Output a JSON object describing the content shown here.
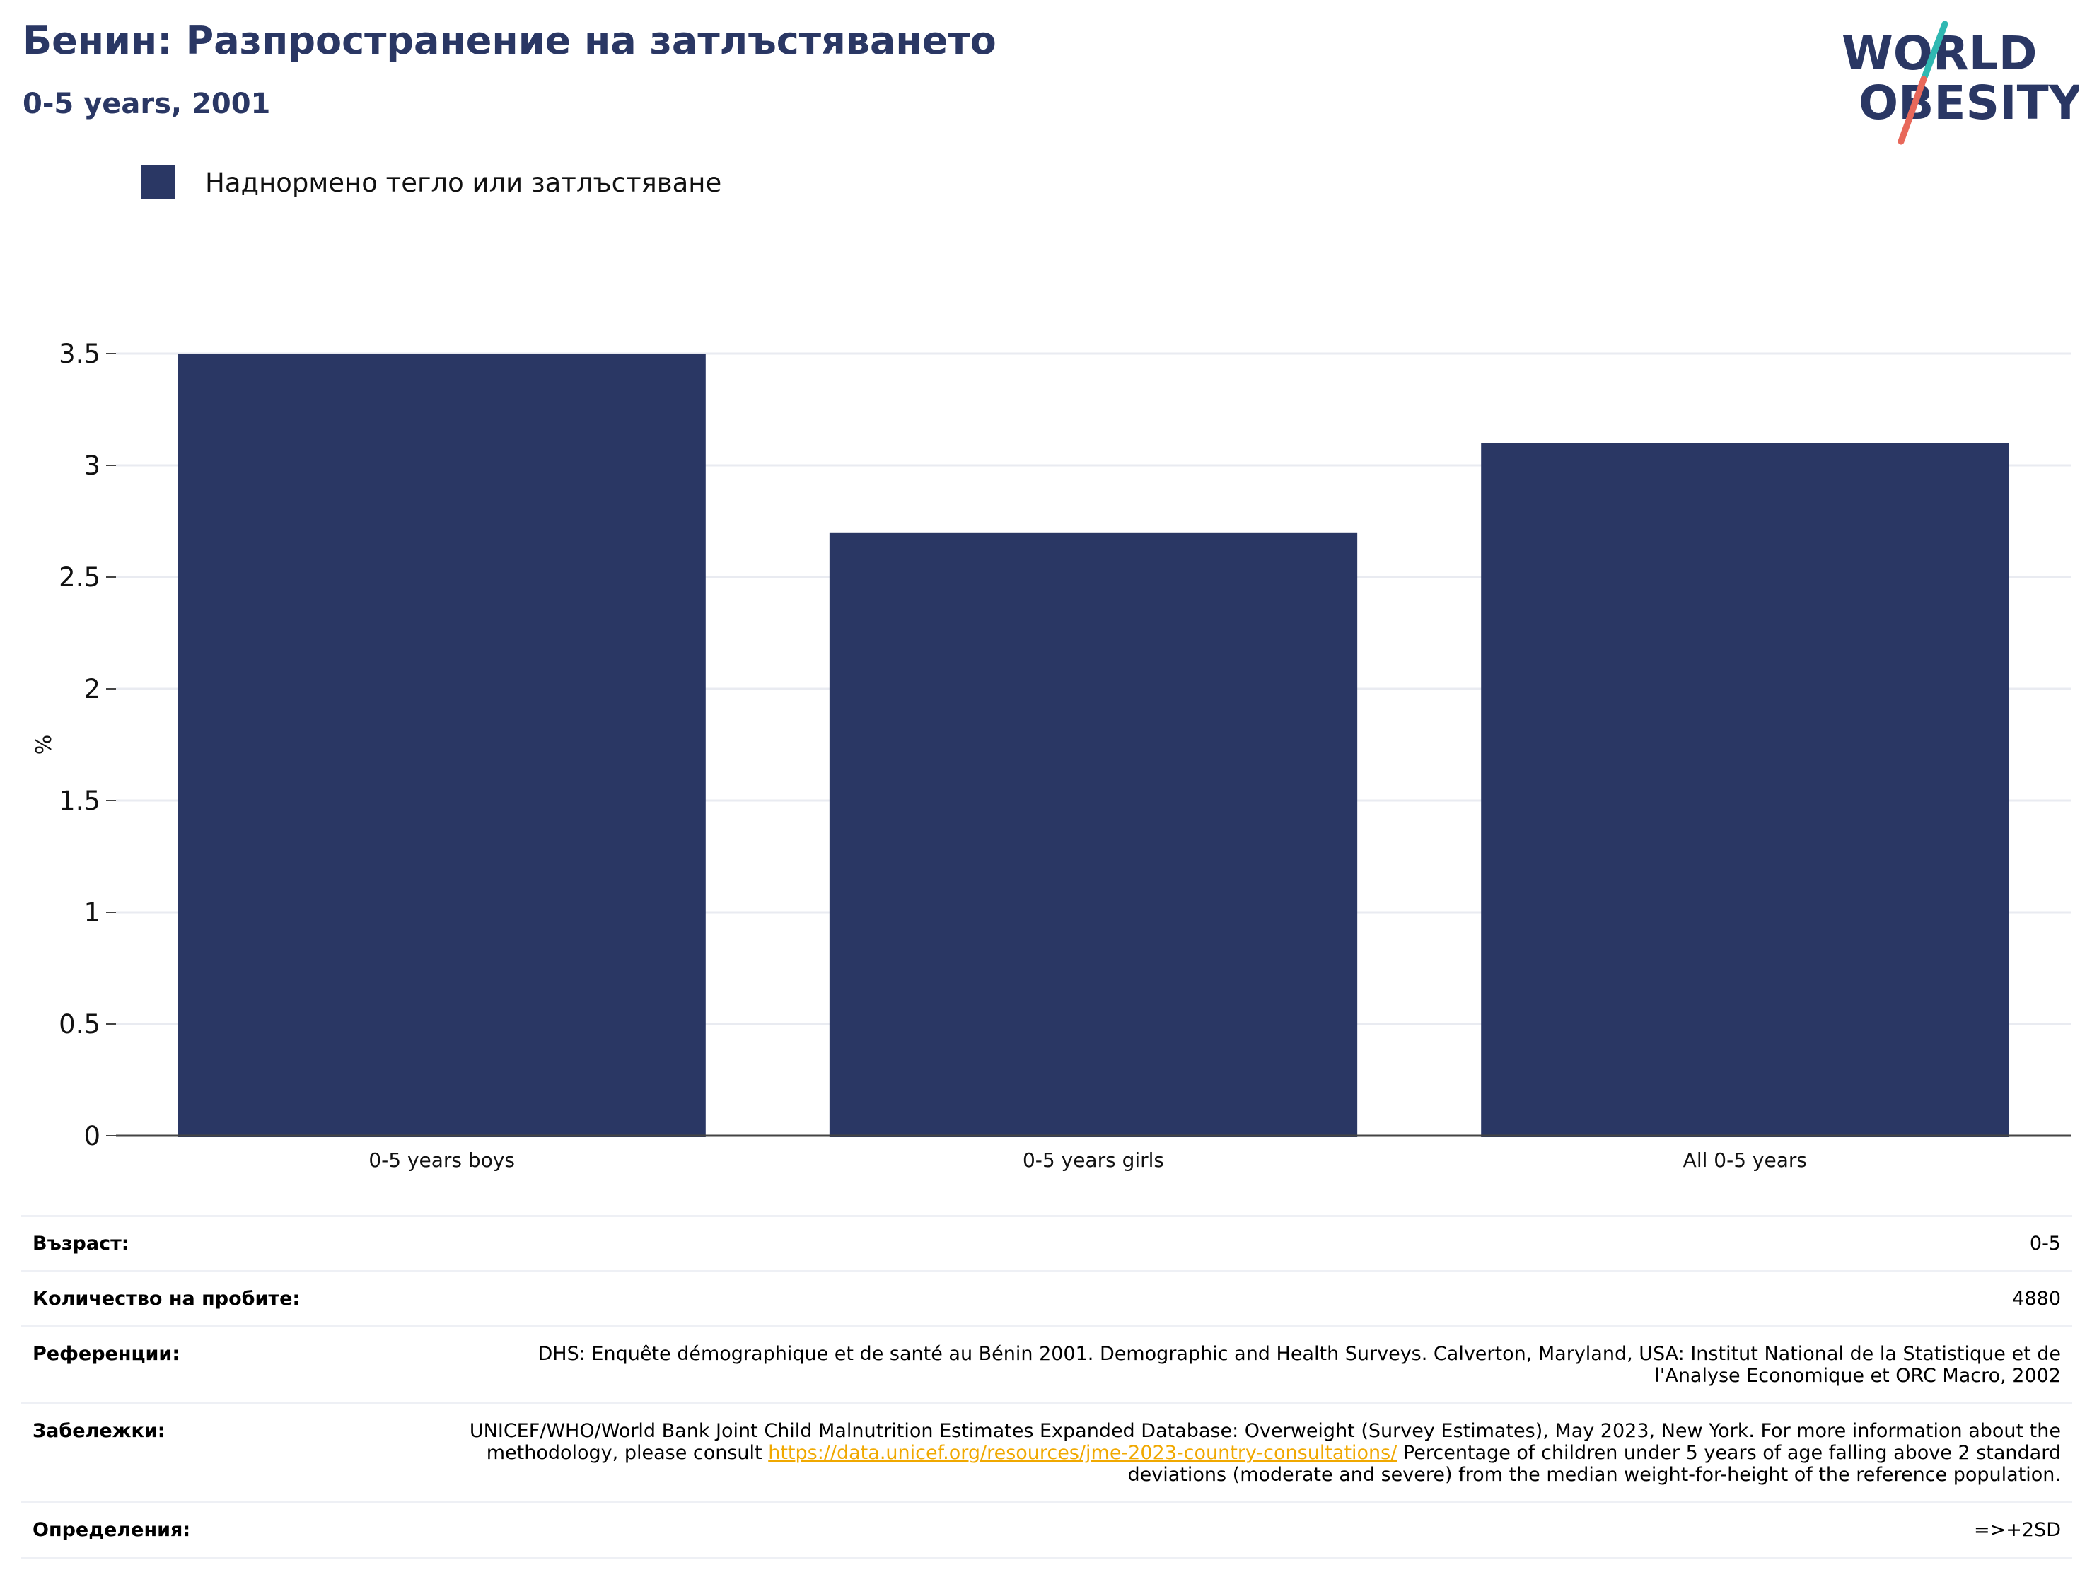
{
  "header": {
    "title": "Бенин: Разпространение на затлъстяването",
    "subtitle": "0-5 years, 2001",
    "logo_text_line1": "WORLD",
    "logo_text_line2": "OBESITY"
  },
  "legend": {
    "label": "Наднормено тегло или затлъстяване"
  },
  "colors": {
    "bar": "#2a3764",
    "accent_teal": "#2fb8b2",
    "accent_coral": "#e8685a",
    "link": "#f0a800"
  },
  "chart_data": {
    "type": "bar",
    "categories": [
      "0-5 years boys",
      "0-5 years girls",
      "All 0-5 years"
    ],
    "series": [
      {
        "name": "Наднормено тегло или затлъстяване",
        "values": [
          3.5,
          2.7,
          3.1
        ]
      }
    ],
    "ylabel": "%",
    "ylim": [
      0,
      3.5
    ],
    "yticks": [
      0,
      0.5,
      1,
      1.5,
      2,
      2.5,
      3,
      3.5
    ],
    "ytick_labels": [
      "0",
      "0.5",
      "1",
      "1.5",
      "2",
      "2.5",
      "3",
      "3.5"
    ],
    "grid": true,
    "legend_position": "top-left"
  },
  "info": {
    "age": {
      "label": "Възраст:",
      "value": "0-5"
    },
    "sample": {
      "label": "Количество на пробите:",
      "value": "4880"
    },
    "references": {
      "label": "Референции:",
      "value": "DHS: Enquête démographique et de santé au Bénin 2001. Demographic and Health Surveys. Calverton, Maryland, USA: Institut National de la Statistique et de l'Analyse Economique et ORC Macro, 2002"
    },
    "notes": {
      "label": "Забележки:",
      "text_before": "UNICEF/WHO/World Bank Joint Child Malnutrition Estimates Expanded Database: Overweight (Survey Estimates), May 2023, New York. For more information about the methodology, please consult ",
      "link": "https://data.unicef.org/resources/jme-2023-country-consultations/",
      "text_after": " Percentage of children under 5 years of age falling above 2 standard deviations (moderate and severe) from the median weight-for-height of the reference population."
    },
    "definitions": {
      "label": "Определения:",
      "value": "=>+2SD"
    }
  }
}
